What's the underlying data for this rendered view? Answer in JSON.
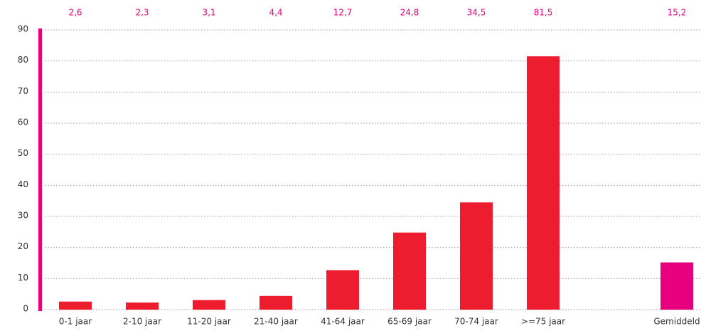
{
  "chart_data": {
    "type": "bar",
    "categories": [
      "0-1 jaar",
      "2-10 jaar",
      "11-20 jaar",
      "21-40 jaar",
      "41-64 jaar",
      "65-69 jaar",
      "70-74 jaar",
      ">=75 jaar",
      null,
      "Gemiddeld"
    ],
    "values": [
      2.6,
      2.3,
      3.1,
      4.4,
      12.7,
      24.8,
      34.5,
      81.5,
      null,
      15.2
    ],
    "value_labels": [
      "2,6",
      "2,3",
      "3,1",
      "4,4",
      "12,7",
      "24,8",
      "34,5",
      "81,5",
      null,
      "15,2"
    ],
    "colors": [
      "#ed1c2e",
      "#ed1c2e",
      "#ed1c2e",
      "#ed1c2e",
      "#ed1c2e",
      "#ed1c2e",
      "#ed1c2e",
      "#ed1c2e",
      null,
      "#e6007e"
    ],
    "label_color": "#e6007e",
    "ylim": [
      0,
      90
    ],
    "yticks": [
      0,
      10,
      20,
      30,
      40,
      50,
      60,
      70,
      80,
      90
    ],
    "grid": true
  }
}
